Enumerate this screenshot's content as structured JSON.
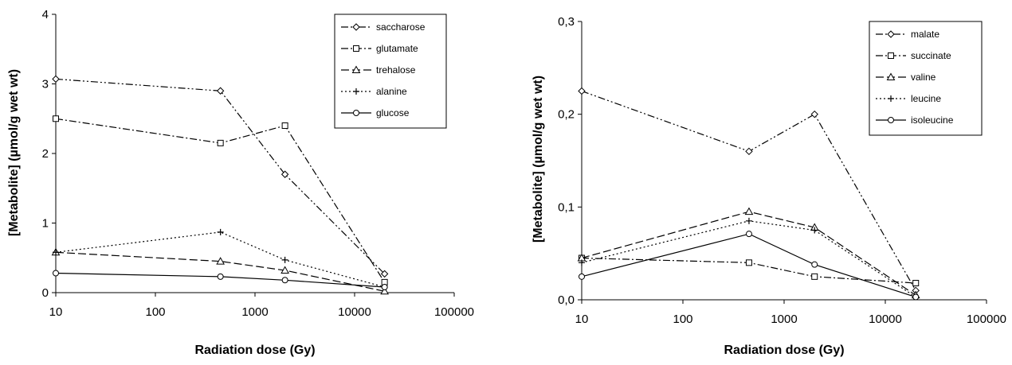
{
  "chart_data": [
    {
      "type": "line",
      "x_scale": "log",
      "xlabel": "Radiation dose (Gy)",
      "ylabel": "[Metabolite] (µmol/g wet wt)",
      "xlim": [
        10,
        100000
      ],
      "ylim": [
        0,
        4
      ],
      "x_ticks": [
        "10",
        "100",
        "1000",
        "10000",
        "100000"
      ],
      "y_ticks": [
        "0",
        "1",
        "2",
        "3",
        "4"
      ],
      "y_tick_values": [
        0,
        1,
        2,
        3,
        4
      ],
      "legend_position": "top-right",
      "grid": false,
      "x": [
        10,
        450,
        2000,
        20000
      ],
      "series": [
        {
          "name": "saccharose",
          "values": [
            3.07,
            2.9,
            1.7,
            0.27
          ],
          "marker": "diamond",
          "dash": "dashdotdot"
        },
        {
          "name": "glutamate",
          "values": [
            2.5,
            2.15,
            2.4,
            0.15
          ],
          "marker": "square",
          "dash": "dashdot"
        },
        {
          "name": "trehalose",
          "values": [
            0.58,
            0.45,
            0.32,
            0.02
          ],
          "marker": "triangle",
          "dash": "longdash"
        },
        {
          "name": "alanine",
          "values": [
            0.58,
            0.87,
            0.47,
            0.08
          ],
          "marker": "plus",
          "dash": "dotted"
        },
        {
          "name": "glucose",
          "values": [
            0.28,
            0.23,
            0.18,
            0.08
          ],
          "marker": "circle",
          "dash": "solid"
        }
      ]
    },
    {
      "type": "line",
      "x_scale": "log",
      "xlabel": "Radiation dose (Gy)",
      "ylabel": "[Metabolite] (µmol/g wet wt)",
      "xlim": [
        10,
        100000
      ],
      "ylim": [
        0,
        0.3
      ],
      "x_ticks": [
        "10",
        "100",
        "1000",
        "10000",
        "100000"
      ],
      "y_ticks": [
        "0,0",
        "0,1",
        "0,2",
        "0,3"
      ],
      "y_tick_values": [
        0,
        0.1,
        0.2,
        0.3
      ],
      "legend_position": "top-right",
      "grid": false,
      "x": [
        10,
        450,
        2000,
        20000
      ],
      "series": [
        {
          "name": "malate",
          "values": [
            0.225,
            0.16,
            0.2,
            0.01
          ],
          "marker": "diamond",
          "dash": "dashdotdot"
        },
        {
          "name": "succinate",
          "values": [
            0.045,
            0.04,
            0.025,
            0.018
          ],
          "marker": "square",
          "dash": "dashdot"
        },
        {
          "name": "valine",
          "values": [
            0.045,
            0.095,
            0.078,
            0.005
          ],
          "marker": "triangle",
          "dash": "longdash"
        },
        {
          "name": "leucine",
          "values": [
            0.04,
            0.085,
            0.075,
            0.003
          ],
          "marker": "plus",
          "dash": "dotted"
        },
        {
          "name": "isoleucine",
          "values": [
            0.025,
            0.071,
            0.038,
            0.003
          ],
          "marker": "circle",
          "dash": "solid"
        }
      ]
    }
  ]
}
